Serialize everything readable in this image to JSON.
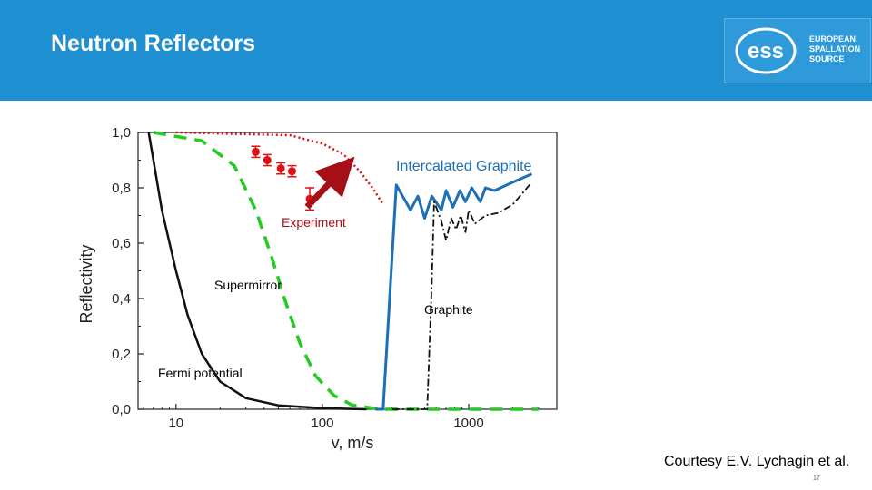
{
  "slide": {
    "title": "Neutron Reflectors",
    "logo_text": "EUROPEAN\nSPALLATION\nSOURCE",
    "logo_letters": "ess",
    "courtesy": "Courtesy E.V. Lychagin et al.",
    "page_number": "17"
  },
  "colors": {
    "header": "#1e8fd1",
    "supermirror": "#22cc22",
    "experiment": "#dd1111",
    "intercalated_graphite": "#1f6fb5",
    "graphite": "#111111",
    "fermi": "#111111",
    "arrow": "#a50f15"
  },
  "chart_data": {
    "type": "line",
    "xlabel": "v, m/s",
    "ylabel": "Reflectivity",
    "x_scale": "log",
    "xlim": [
      5.5,
      4000
    ],
    "ylim": [
      0,
      1.0
    ],
    "x_ticks": [
      {
        "value": 10,
        "label": "10"
      },
      {
        "value": 100,
        "label": "100"
      },
      {
        "value": 1000,
        "label": "1000"
      }
    ],
    "y_ticks": [
      {
        "value": 0.0,
        "label": "0,0"
      },
      {
        "value": 0.2,
        "label": "0,2"
      },
      {
        "value": 0.4,
        "label": "0,4"
      },
      {
        "value": 0.6,
        "label": "0,6"
      },
      {
        "value": 0.8,
        "label": "0,8"
      },
      {
        "value": 1.0,
        "label": "1,0"
      }
    ],
    "annotations": [
      "Intercalated Graphite",
      "Experiment",
      "Supermirror",
      "Graphite",
      "Fermi potential"
    ],
    "series": [
      {
        "name": "Fermi potential",
        "style": "solid",
        "points": [
          [
            6.5,
            1.0
          ],
          [
            7.0,
            0.9
          ],
          [
            8.0,
            0.72
          ],
          [
            10,
            0.5
          ],
          [
            12,
            0.34
          ],
          [
            15,
            0.2
          ],
          [
            20,
            0.1
          ],
          [
            30,
            0.04
          ],
          [
            50,
            0.014
          ],
          [
            100,
            0.004
          ],
          [
            200,
            0.0
          ]
        ]
      },
      {
        "name": "Supermirror",
        "style": "dashed",
        "points": [
          [
            7,
            1.0
          ],
          [
            15,
            0.97
          ],
          [
            25,
            0.88
          ],
          [
            35,
            0.72
          ],
          [
            45,
            0.55
          ],
          [
            55,
            0.4
          ],
          [
            70,
            0.24
          ],
          [
            90,
            0.12
          ],
          [
            120,
            0.05
          ],
          [
            160,
            0.015
          ],
          [
            250,
            0.0
          ],
          [
            3000,
            0.0
          ]
        ]
      },
      {
        "name": "Experiment fit",
        "style": "dotted",
        "points": [
          [
            10,
            1.0
          ],
          [
            60,
            0.99
          ],
          [
            100,
            0.96
          ],
          [
            140,
            0.92
          ],
          [
            180,
            0.86
          ],
          [
            220,
            0.8
          ],
          [
            260,
            0.74
          ]
        ]
      },
      {
        "name": "Intercalated Graphite",
        "style": "solid",
        "points": [
          [
            230,
            0.0
          ],
          [
            260,
            0.0
          ],
          [
            320,
            0.81
          ],
          [
            400,
            0.72
          ],
          [
            450,
            0.77
          ],
          [
            500,
            0.69
          ],
          [
            560,
            0.77
          ],
          [
            650,
            0.72
          ],
          [
            700,
            0.79
          ],
          [
            780,
            0.73
          ],
          [
            870,
            0.79
          ],
          [
            950,
            0.75
          ],
          [
            1050,
            0.8
          ],
          [
            1200,
            0.75
          ],
          [
            1300,
            0.8
          ],
          [
            1500,
            0.79
          ],
          [
            2000,
            0.82
          ],
          [
            2700,
            0.85
          ]
        ]
      },
      {
        "name": "Graphite",
        "style": "dash-dot",
        "points": [
          [
            300,
            0.0
          ],
          [
            520,
            0.0
          ],
          [
            560,
            0.46
          ],
          [
            580,
            0.75
          ],
          [
            650,
            0.68
          ],
          [
            700,
            0.61
          ],
          [
            760,
            0.69
          ],
          [
            820,
            0.65
          ],
          [
            880,
            0.7
          ],
          [
            950,
            0.64
          ],
          [
            1000,
            0.72
          ],
          [
            1100,
            0.67
          ],
          [
            1300,
            0.7
          ],
          [
            1600,
            0.71
          ],
          [
            2000,
            0.74
          ],
          [
            2700,
            0.82
          ]
        ]
      }
    ],
    "experiment_points": [
      {
        "x": 35,
        "y": 0.93,
        "err": 0.02
      },
      {
        "x": 42,
        "y": 0.9,
        "err": 0.02
      },
      {
        "x": 52,
        "y": 0.87,
        "err": 0.02
      },
      {
        "x": 62,
        "y": 0.86,
        "err": 0.02
      },
      {
        "x": 82,
        "y": 0.76,
        "err": 0.04
      }
    ]
  }
}
